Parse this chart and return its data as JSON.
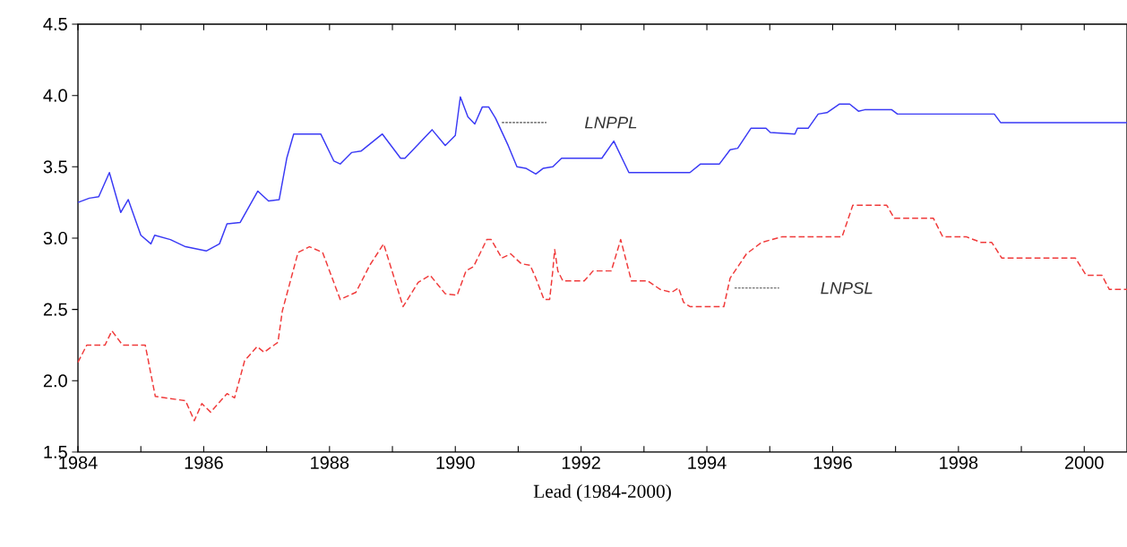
{
  "chart_data": {
    "type": "line",
    "xlabel": "Lead (1984-2000)",
    "xlim": [
      1984,
      2000.68
    ],
    "ylim": [
      1.5,
      4.5
    ],
    "xticks": [
      1984,
      {
        "value": 1985,
        "label": null
      },
      1986,
      {
        "value": 1987,
        "label": null
      },
      1988,
      {
        "value": 1989,
        "label": null
      },
      1990,
      {
        "value": 1991,
        "label": null
      },
      1992,
      {
        "value": 1993,
        "label": null
      },
      1994,
      {
        "value": 1995,
        "label": null
      },
      1996,
      {
        "value": 1997,
        "label": null
      },
      1998,
      {
        "value": 1999,
        "label": null
      },
      2000
    ],
    "yticks": [
      1.5,
      {
        "value": 2,
        "label": "2.0"
      },
      2.5,
      {
        "value": 3,
        "label": "3.0"
      },
      3.5,
      {
        "value": 4,
        "label": "4.0"
      },
      4.5
    ],
    "series": [
      {
        "name": "LNPPL",
        "color": "#3a3af5",
        "line_style": "solid",
        "x": [
          1984.0,
          1984.18,
          1984.33,
          1984.5,
          1984.68,
          1984.8,
          1985.0,
          1985.16,
          1985.22,
          1985.47,
          1985.71,
          1986.04,
          1986.25,
          1986.37,
          1986.58,
          1986.86,
          1987.03,
          1987.2,
          1987.32,
          1987.43,
          1987.86,
          1988.07,
          1988.17,
          1988.35,
          1988.5,
          1988.84,
          1989.13,
          1989.2,
          1989.63,
          1989.84,
          1990.0,
          1990.08,
          1990.2,
          1990.31,
          1990.43,
          1990.53,
          1990.64,
          1990.84,
          1990.98,
          1991.12,
          1991.28,
          1991.4,
          1991.55,
          1991.69,
          1992.33,
          1992.52,
          1992.76,
          1993.73,
          1993.9,
          1994.2,
          1994.37,
          1994.49,
          1994.7,
          1994.94,
          1995.01,
          1995.4,
          1995.44,
          1995.61,
          1995.77,
          1995.91,
          1996.11,
          1996.27,
          1996.41,
          1996.51,
          1996.94,
          1997.03,
          1998.57,
          1998.67,
          2000.68
        ],
        "values": [
          3.25,
          3.28,
          3.29,
          3.46,
          3.18,
          3.27,
          3.02,
          2.96,
          3.02,
          2.99,
          2.94,
          2.91,
          2.96,
          3.1,
          3.11,
          3.33,
          3.26,
          3.27,
          3.56,
          3.73,
          3.73,
          3.54,
          3.52,
          3.6,
          3.61,
          3.73,
          3.56,
          3.56,
          3.76,
          3.65,
          3.72,
          3.99,
          3.85,
          3.8,
          3.92,
          3.92,
          3.84,
          3.65,
          3.5,
          3.49,
          3.45,
          3.49,
          3.5,
          3.56,
          3.56,
          3.68,
          3.46,
          3.46,
          3.52,
          3.52,
          3.62,
          3.63,
          3.77,
          3.77,
          3.74,
          3.73,
          3.77,
          3.77,
          3.87,
          3.88,
          3.94,
          3.94,
          3.89,
          3.9,
          3.9,
          3.87,
          3.87,
          3.81,
          3.81
        ]
      },
      {
        "name": "LNPSL",
        "color": "#f03a3a",
        "line_style": "dashed",
        "x": [
          1984.0,
          1984.14,
          1984.43,
          1984.54,
          1984.71,
          1985.07,
          1985.23,
          1985.71,
          1985.85,
          1985.97,
          1986.11,
          1986.37,
          1986.49,
          1986.65,
          1986.85,
          1986.96,
          1987.18,
          1987.25,
          1987.5,
          1987.68,
          1987.89,
          1988.17,
          1988.42,
          1988.64,
          1988.86,
          1989.17,
          1989.41,
          1989.6,
          1989.84,
          1990.03,
          1990.17,
          1990.29,
          1990.5,
          1990.57,
          1990.74,
          1990.88,
          1991.05,
          1991.19,
          1991.28,
          1991.41,
          1991.5,
          1991.55,
          1991.58,
          1991.63,
          1991.71,
          1992.05,
          1992.19,
          1992.48,
          1992.63,
          1992.8,
          1993.06,
          1993.26,
          1993.44,
          1993.55,
          1993.63,
          1993.73,
          1994.27,
          1994.37,
          1994.63,
          1994.87,
          1995.2,
          1996.15,
          1996.32,
          1996.86,
          1996.98,
          1997.6,
          1997.75,
          1998.12,
          1998.36,
          1998.53,
          1998.69,
          1999.86,
          2000.03,
          2000.28,
          2000.4,
          2000.68
        ],
        "values": [
          2.13,
          2.25,
          2.25,
          2.35,
          2.25,
          2.25,
          1.89,
          1.86,
          1.72,
          1.84,
          1.78,
          1.91,
          1.88,
          2.14,
          2.24,
          2.2,
          2.27,
          2.49,
          2.9,
          2.94,
          2.9,
          2.57,
          2.62,
          2.81,
          2.96,
          2.52,
          2.69,
          2.74,
          2.61,
          2.6,
          2.77,
          2.8,
          2.99,
          2.99,
          2.86,
          2.89,
          2.82,
          2.81,
          2.72,
          2.57,
          2.57,
          2.77,
          2.92,
          2.77,
          2.7,
          2.7,
          2.77,
          2.77,
          2.99,
          2.7,
          2.7,
          2.64,
          2.62,
          2.65,
          2.55,
          2.52,
          2.52,
          2.72,
          2.89,
          2.97,
          3.01,
          3.01,
          3.23,
          3.23,
          3.14,
          3.14,
          3.01,
          3.01,
          2.97,
          2.97,
          2.86,
          2.86,
          2.74,
          2.74,
          2.64,
          2.64
        ]
      }
    ]
  }
}
